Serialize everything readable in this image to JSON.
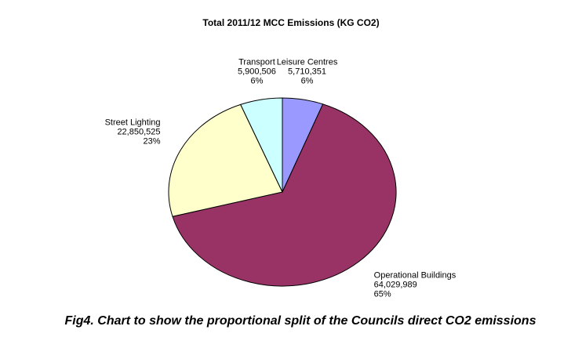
{
  "chart_data": {
    "type": "pie",
    "title": "Total 2011/12 MCC Emissions (KG CO2)",
    "categories": [
      "Leisure Centres",
      "Operational Buildings",
      "Street Lighting",
      "Transport"
    ],
    "values": [
      5710351,
      64029989,
      22850525,
      5900506
    ],
    "value_labels": [
      "5,710,351",
      "64,029,989",
      "22,850,525",
      "5,900,506"
    ],
    "percent_labels": [
      "6%",
      "65%",
      "23%",
      "6%"
    ],
    "colors": [
      "#9999ff",
      "#993366",
      "#ffffcc",
      "#ccffff"
    ],
    "caption": "Fig4. Chart to show the proportional split of the Councils direct CO2 emissions"
  }
}
